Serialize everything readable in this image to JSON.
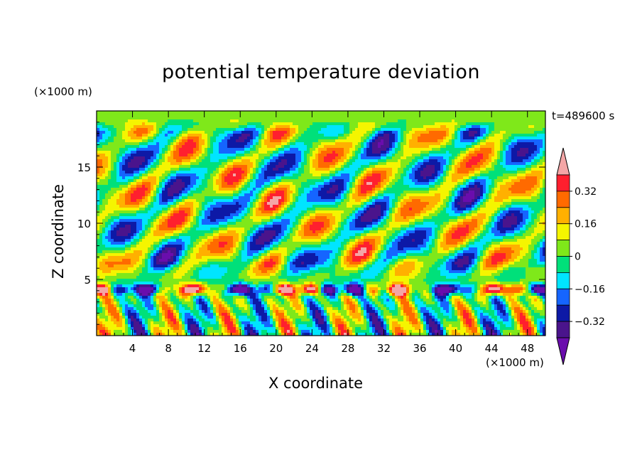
{
  "chart_data": {
    "type": "heatmap",
    "title": "potential temperature deviation",
    "xlabel": "X coordinate",
    "ylabel": "Z coordinate",
    "x_unit": "(×1000 m)",
    "y_unit": "(×1000 m)",
    "time_label": "t=489600 s",
    "xlim": [
      0,
      50
    ],
    "ylim": [
      0,
      20
    ],
    "x_ticks": [
      4,
      8,
      12,
      16,
      20,
      24,
      28,
      32,
      36,
      40,
      44,
      48
    ],
    "y_ticks": [
      5,
      10,
      15
    ],
    "colorbar": {
      "levels": [
        -0.48,
        -0.4,
        -0.32,
        -0.24,
        -0.16,
        -0.08,
        0,
        0.08,
        0.16,
        0.24,
        0.32,
        0.4
      ],
      "labeled_levels": [
        0.32,
        0.16,
        0,
        -0.16,
        -0.32
      ],
      "labels": [
        "0.32",
        "0.16",
        "0",
        "−0.16",
        "−0.32"
      ],
      "colors": [
        "#6a0dad",
        "#4a148c",
        "#0d19a6",
        "#1565ff",
        "#00e5ff",
        "#00e07a",
        "#7fe81a",
        "#f5f500",
        "#ffb000",
        "#ff6a00",
        "#ff1f2e",
        "#f4a6a6"
      ]
    }
  }
}
